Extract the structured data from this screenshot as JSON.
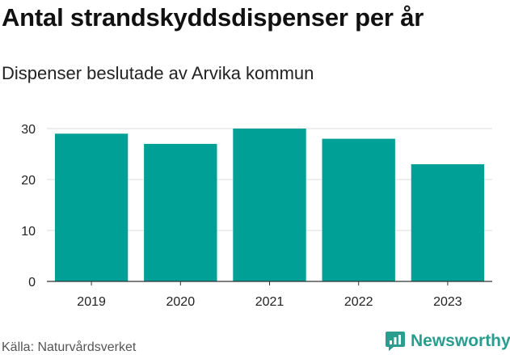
{
  "title": "Antal strandskyddsdispenser per år",
  "subtitle": "Dispenser beslutade av Arvika kommun",
  "source": "Källa: Naturvårdsverket",
  "brand": {
    "name": "Newsworthy",
    "icon": "newsworthy-logo-icon",
    "color": "#2a9d8f"
  },
  "chart_data": {
    "type": "bar",
    "title": "Antal strandskyddsdispenser per år",
    "subtitle": "Dispenser beslutade av Arvika kommun",
    "categories": [
      "2019",
      "2020",
      "2021",
      "2022",
      "2023"
    ],
    "values": [
      29,
      27,
      30,
      28,
      23
    ],
    "xlabel": "",
    "ylabel": "",
    "ylim": [
      0,
      30
    ],
    "yticks": [
      0,
      10,
      20,
      30
    ],
    "grid": true,
    "bar_color": "#00a096"
  }
}
